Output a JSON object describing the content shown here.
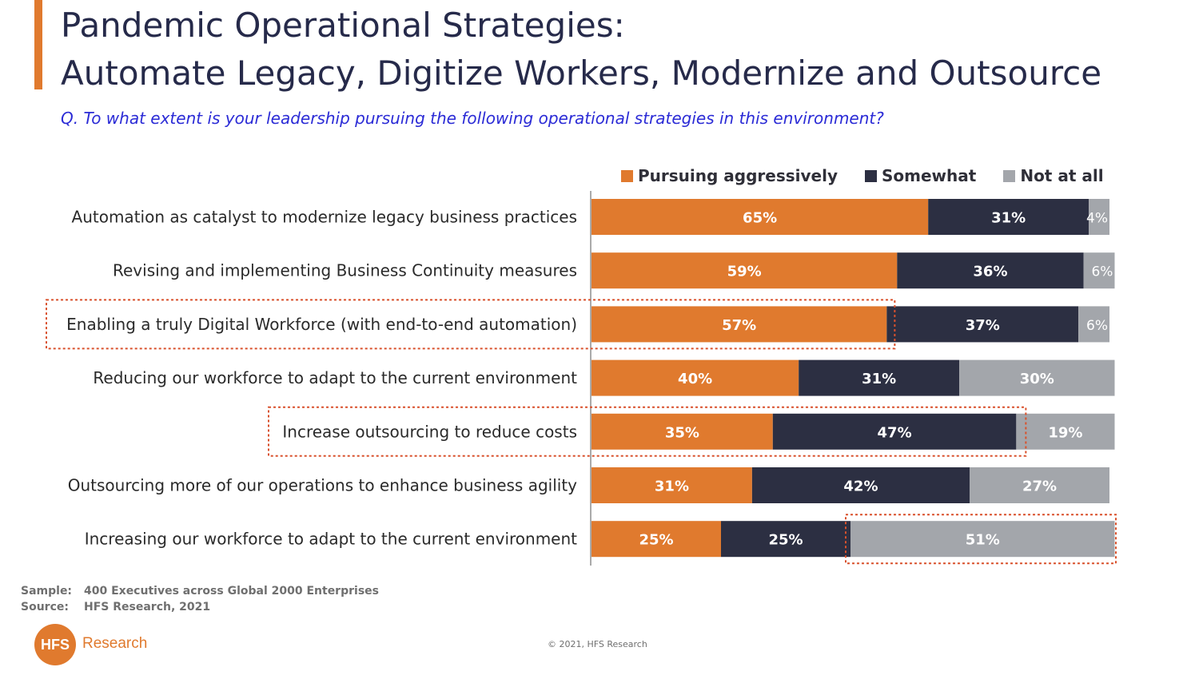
{
  "header": {
    "title_line1": "Pandemic Operational Strategies:",
    "title_line2": "Automate Legacy, Digitize Workers, Modernize and Outsource",
    "question": "Q. To what extent is your leadership pursuing the following operational strategies in this environment?"
  },
  "colors": {
    "accent": "#E07A2E",
    "pursuing": "#E07A2E",
    "somewhat": "#2C2F42",
    "not_at_all": "#A3A6AB",
    "highlight_border": "#D9512C",
    "question_text": "#2b2bd6"
  },
  "chart_data": {
    "type": "bar",
    "orientation": "horizontal",
    "stacked": true,
    "categories": [
      "Automation as catalyst to modernize legacy business practices",
      "Revising and implementing Business Continuity measures",
      "Enabling a truly Digital Workforce (with end-to-end automation)",
      "Reducing our workforce to adapt to the current environment",
      "Increase outsourcing to reduce costs",
      "Outsourcing more of our operations to enhance business agility",
      "Increasing our workforce to adapt to the current environment"
    ],
    "series": [
      {
        "name": "Pursuing aggressively",
        "values": [
          65,
          59,
          57,
          40,
          35,
          31,
          25
        ]
      },
      {
        "name": "Somewhat",
        "values": [
          31,
          36,
          37,
          31,
          47,
          42,
          25
        ]
      },
      {
        "name": "Not at all",
        "values": [
          4,
          6,
          6,
          30,
          19,
          27,
          51
        ]
      }
    ],
    "data_labels": [
      [
        "65%",
        "59%",
        "57%",
        "40%",
        "35%",
        "31%",
        "25%"
      ],
      [
        "31%",
        "36%",
        "37%",
        "31%",
        "47%",
        "42%",
        "25%"
      ],
      [
        "4%",
        "6%",
        "6%",
        "30%",
        "19%",
        "27%",
        "51%"
      ]
    ],
    "xlim": [
      0,
      100
    ],
    "legend_position": "top",
    "grid": false,
    "highlights": [
      {
        "category_index": 2,
        "includes": "label and Pursuing aggressively"
      },
      {
        "category_index": 4,
        "includes": "label, Pursuing aggressively and Somewhat"
      },
      {
        "category_index": 6,
        "includes": "Not at all"
      }
    ]
  },
  "footer": {
    "sample_label": "Sample:",
    "sample_value": "400 Executives across Global 2000 Enterprises",
    "source_label": "Source:",
    "source_value": "HFS Research, 2021",
    "logo_mark": "HFS",
    "logo_word": "Research",
    "copyright": "© 2021, HFS Research"
  }
}
